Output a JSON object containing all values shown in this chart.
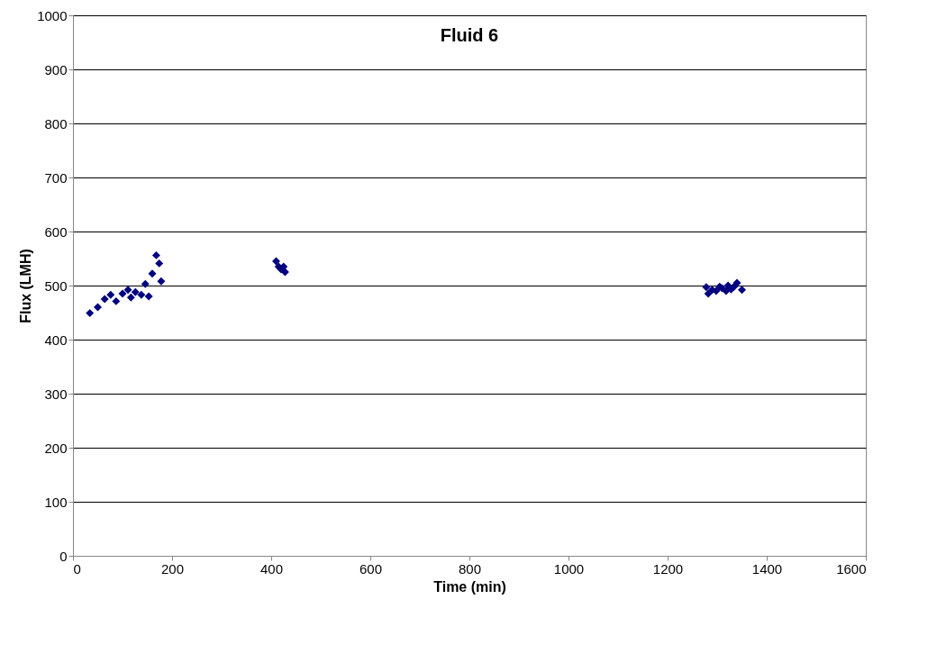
{
  "chart_data": {
    "type": "scatter",
    "title": "Fluid 6",
    "xlabel": "Time (min)",
    "ylabel": "Flux (LMH)",
    "x": [
      34,
      50,
      64,
      76,
      87,
      100,
      111,
      117,
      126,
      138,
      146,
      153,
      160,
      168,
      174,
      178,
      410,
      415,
      420,
      425,
      428,
      1278,
      1282,
      1290,
      1298,
      1305,
      1310,
      1318,
      1322,
      1328,
      1334,
      1340,
      1350
    ],
    "series": [
      {
        "color": "#000080",
        "values": [
          449,
          460,
          475,
          483,
          471,
          485,
          492,
          478,
          488,
          483,
          503,
          480,
          522,
          556,
          541,
          508,
          545,
          535,
          530,
          535,
          525,
          497,
          485,
          492,
          490,
          498,
          495,
          490,
          500,
          493,
          498,
          505,
          492
        ]
      }
    ],
    "xlim": [
      0,
      1600
    ],
    "xticks": [
      0,
      200,
      400,
      600,
      800,
      1000,
      1200,
      1400,
      1600
    ],
    "ylim": [
      0,
      1000
    ],
    "yticks": [
      0,
      100,
      200,
      300,
      400,
      500,
      600,
      700,
      800,
      900,
      1000
    ],
    "grid": "y",
    "marker": "diamond",
    "legend": false
  }
}
